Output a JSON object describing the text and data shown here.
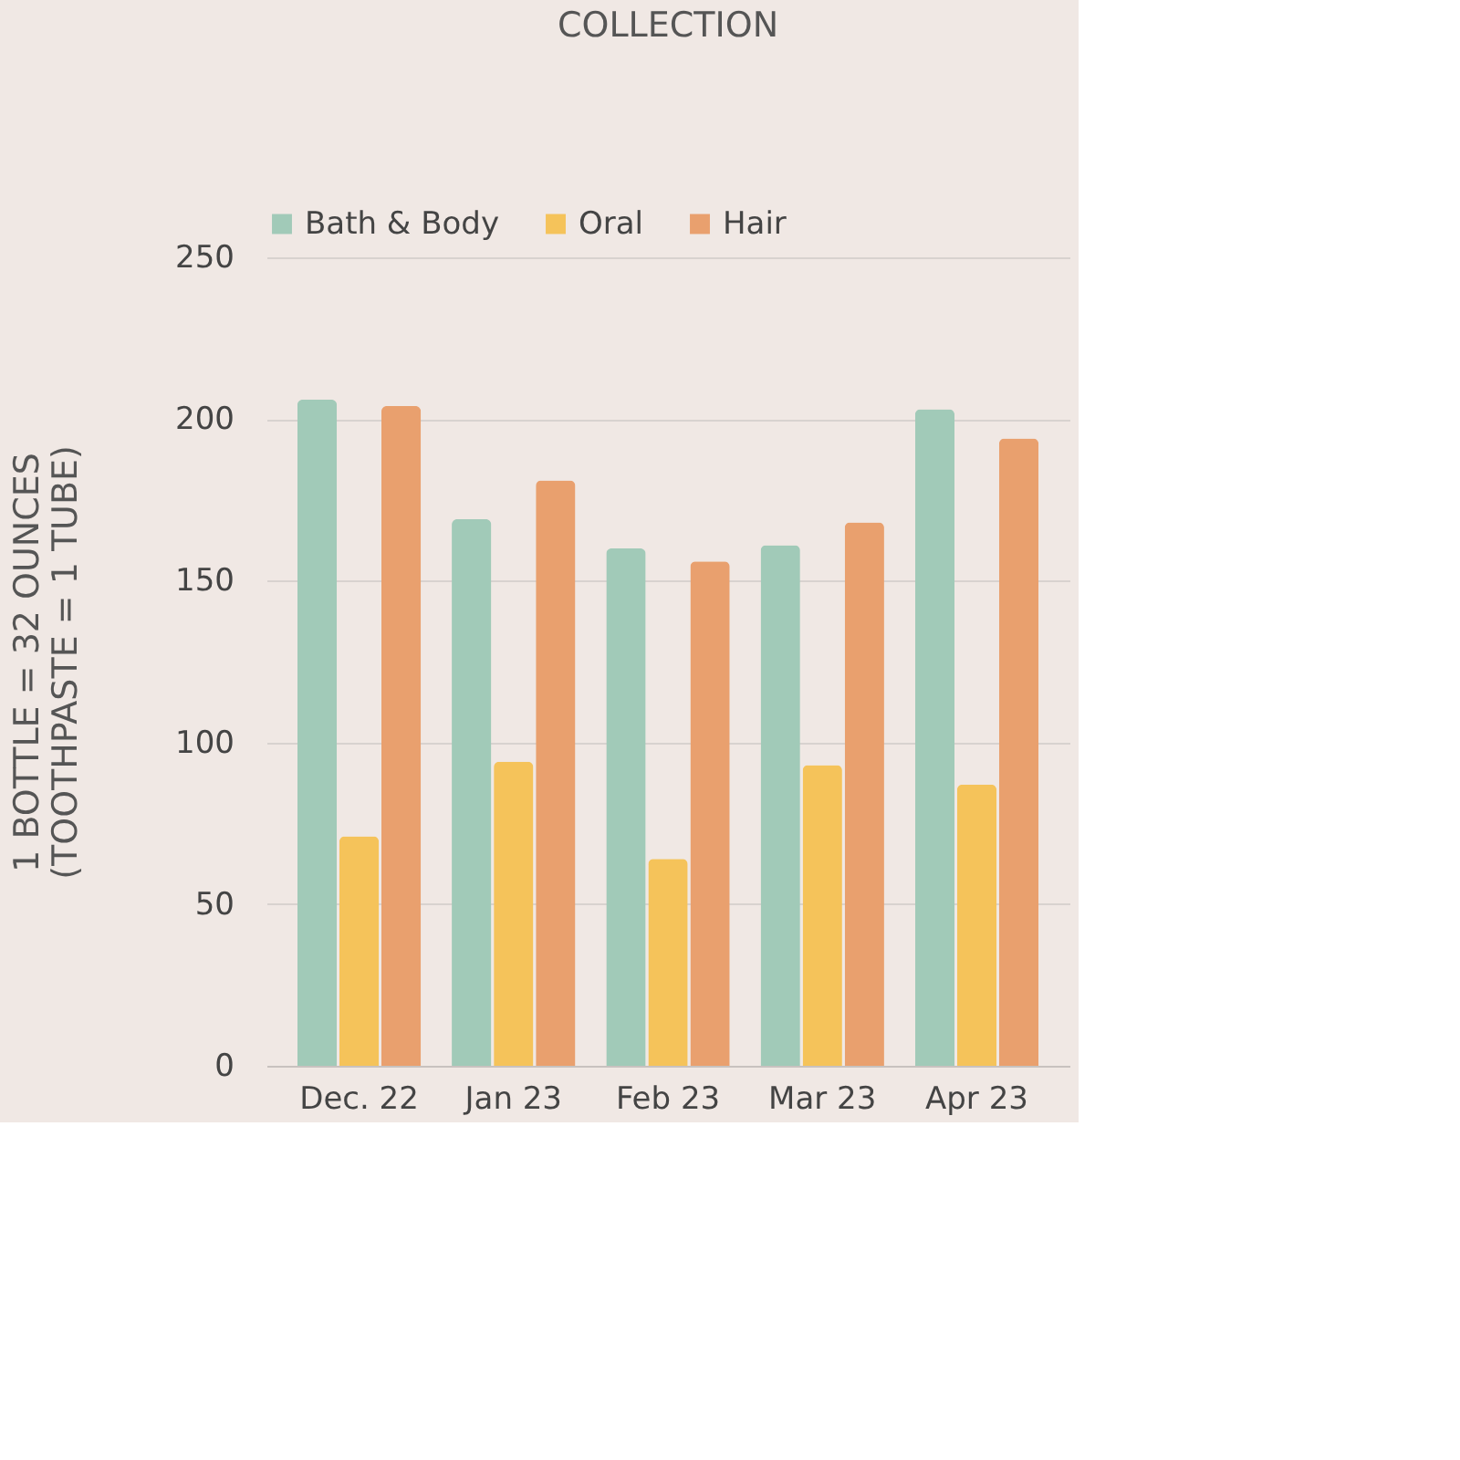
{
  "chart_data": {
    "type": "bar",
    "title": "COLLECTION",
    "ylabel": "1 BOTTLE = 32 OUNCES\n(TOOTHPASTE = 1 TUBE)",
    "categories": [
      "Dec. 22",
      "Jan 23",
      "Feb 23",
      "Mar 23",
      "Apr 23"
    ],
    "series": [
      {
        "name": "Bath & Body",
        "color": "#a1cab8",
        "values": [
          206,
          169,
          160,
          161,
          203
        ]
      },
      {
        "name": "Oral",
        "color": "#f5c35a",
        "values": [
          71,
          94,
          64,
          93,
          87
        ]
      },
      {
        "name": "Hair",
        "color": "#e9a06e",
        "values": [
          204,
          181,
          156,
          168,
          194
        ]
      }
    ],
    "ylim": [
      0,
      250
    ],
    "yticks": [
      0,
      50,
      100,
      150,
      200,
      250
    ],
    "grid": "y",
    "legend": "top"
  }
}
